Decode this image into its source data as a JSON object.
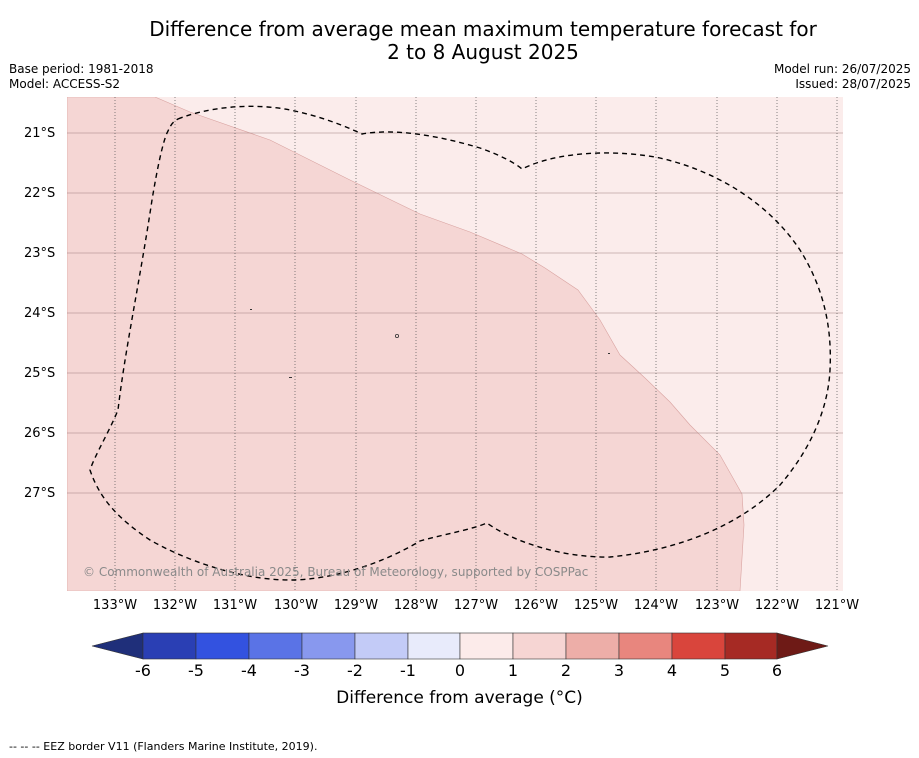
{
  "title_line1": "Difference from average mean maximum temperature forecast for",
  "title_line2": "2 to 8 August 2025",
  "base_period": "Base period: 1981-2018",
  "model": "Model: ACCESS-S2",
  "model_run": "Model run: 26/07/2025",
  "issued": "Issued: 28/07/2025",
  "copyright": "© Commonwealth of Australia 2025, Bureau of Meteorology, supported by COSPPac",
  "lat_labels": [
    "21°S",
    "22°S",
    "23°S",
    "24°S",
    "25°S",
    "26°S",
    "27°S"
  ],
  "lon_labels": [
    "133°W",
    "132°W",
    "131°W",
    "130°W",
    "129°W",
    "128°W",
    "127°W",
    "126°W",
    "125°W",
    "124°W",
    "123°W",
    "122°W",
    "121°W"
  ],
  "colorbar": {
    "ticks": [
      "-6",
      "-5",
      "-4",
      "-3",
      "-2",
      "-1",
      "0",
      "1",
      "2",
      "3",
      "4",
      "5",
      "6"
    ],
    "label": "Difference from average (°C)",
    "colors": [
      "#1f2f7a",
      "#2a3fb4",
      "#3352e0",
      "#5a73e6",
      "#8898ee",
      "#c3cbf7",
      "#e8ebfb",
      "#fcebea",
      "#f6d5d3",
      "#edaea8",
      "#e8867e",
      "#d9453c",
      "#a62a24",
      "#6e1a16"
    ]
  },
  "map_fill_colors": {
    "warm_1_2": "#f5d6d4",
    "warm_0_1": "#fbeceb"
  },
  "footnote": "--  --  -- EEZ border V11 (Flanders Marine Institute, 2019)."
}
